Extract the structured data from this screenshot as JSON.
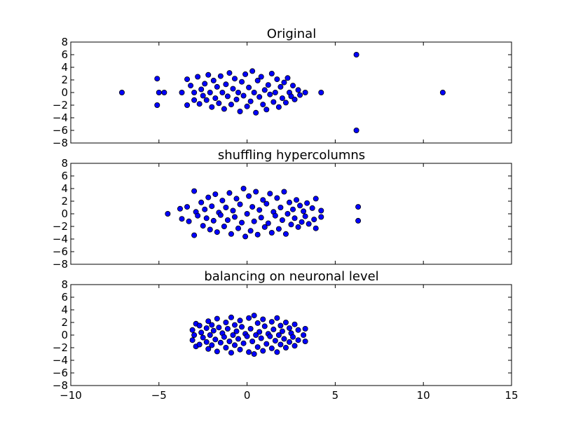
{
  "chart_data": {
    "type": "scatter",
    "marker_color": "#0000ff",
    "marker_edge_color": "#000000",
    "shared_x": true,
    "xlim": [
      -10,
      15
    ],
    "x_ticks": [
      -10,
      -5,
      0,
      5,
      10,
      15
    ],
    "x_tick_labels": [
      "−10",
      "−5",
      "0",
      "5",
      "10",
      "15"
    ],
    "subplots": [
      {
        "title": "Original",
        "ylim": [
          -8,
          8
        ],
        "y_ticks": [
          8,
          6,
          4,
          2,
          0,
          -2,
          -4,
          -6,
          -8
        ],
        "y_tick_labels": [
          "8",
          "6",
          "4",
          "2",
          "0",
          "−2",
          "−4",
          "−6",
          "−8"
        ],
        "points": [
          [
            -7.1,
            0.0
          ],
          [
            -5.1,
            2.2
          ],
          [
            -5.1,
            -2.0
          ],
          [
            -5.0,
            0.0
          ],
          [
            -4.7,
            0.0
          ],
          [
            -3.7,
            0.0
          ],
          [
            -3.4,
            2.1
          ],
          [
            -3.4,
            -2.0
          ],
          [
            -3.2,
            1.1
          ],
          [
            -3.0,
            0.0
          ],
          [
            -3.0,
            -1.2
          ],
          [
            -2.8,
            2.5
          ],
          [
            -2.7,
            -1.8
          ],
          [
            -2.6,
            0.5
          ],
          [
            -2.5,
            -0.5
          ],
          [
            -2.4,
            1.4
          ],
          [
            -2.3,
            -1.2
          ],
          [
            -2.2,
            2.8
          ],
          [
            -2.1,
            0.0
          ],
          [
            -2.0,
            -2.3
          ],
          [
            -1.9,
            1.9
          ],
          [
            -1.8,
            -0.9
          ],
          [
            -1.7,
            0.9
          ],
          [
            -1.6,
            -1.7
          ],
          [
            -1.5,
            2.6
          ],
          [
            -1.4,
            0.0
          ],
          [
            -1.3,
            -2.6
          ],
          [
            -1.2,
            1.3
          ],
          [
            -1.1,
            -0.6
          ],
          [
            -1.0,
            3.1
          ],
          [
            -0.9,
            -1.9
          ],
          [
            -0.8,
            0.6
          ],
          [
            -0.7,
            2.2
          ],
          [
            -0.6,
            -1.1
          ],
          [
            -0.5,
            0.0
          ],
          [
            -0.4,
            -3.0
          ],
          [
            -0.3,
            1.7
          ],
          [
            -0.2,
            -0.5
          ],
          [
            -0.1,
            2.9
          ],
          [
            0.0,
            -2.2
          ],
          [
            0.1,
            0.8
          ],
          [
            0.2,
            -1.4
          ],
          [
            0.3,
            3.4
          ],
          [
            0.4,
            0.0
          ],
          [
            0.5,
            -3.2
          ],
          [
            0.6,
            1.9
          ],
          [
            0.7,
            -0.7
          ],
          [
            0.8,
            2.5
          ],
          [
            0.9,
            -1.9
          ],
          [
            1.0,
            0.4
          ],
          [
            1.1,
            -2.7
          ],
          [
            1.2,
            1.2
          ],
          [
            1.3,
            -0.3
          ],
          [
            1.4,
            3.0
          ],
          [
            1.5,
            -1.5
          ],
          [
            1.6,
            0.0
          ],
          [
            1.7,
            2.1
          ],
          [
            1.8,
            -2.3
          ],
          [
            1.9,
            0.9
          ],
          [
            2.0,
            -0.9
          ],
          [
            2.1,
            1.6
          ],
          [
            2.2,
            -1.6
          ],
          [
            2.3,
            2.3
          ],
          [
            2.4,
            0.0
          ],
          [
            2.5,
            -0.6
          ],
          [
            2.6,
            1.1
          ],
          [
            2.7,
            -1.1
          ],
          [
            2.9,
            0.4
          ],
          [
            3.0,
            -0.4
          ],
          [
            3.3,
            0.0
          ],
          [
            4.2,
            0.0
          ],
          [
            6.2,
            6.0
          ],
          [
            6.2,
            -6.0
          ],
          [
            11.1,
            0.0
          ]
        ]
      },
      {
        "title": "shuffling hypercolumns",
        "ylim": [
          -8,
          8
        ],
        "y_ticks": [
          8,
          6,
          4,
          2,
          0,
          -2,
          -4,
          -6,
          -8
        ],
        "y_tick_labels": [
          "8",
          "6",
          "4",
          "2",
          "0",
          "−2",
          "−4",
          "−6",
          "−8"
        ],
        "points": [
          [
            -4.5,
            0.0
          ],
          [
            -3.8,
            0.8
          ],
          [
            -3.7,
            -0.8
          ],
          [
            -3.4,
            1.1
          ],
          [
            -3.3,
            -1.2
          ],
          [
            -3.0,
            3.6
          ],
          [
            -3.0,
            -3.4
          ],
          [
            -2.9,
            0.3
          ],
          [
            -2.8,
            -0.3
          ],
          [
            -2.6,
            1.8
          ],
          [
            -2.5,
            -1.9
          ],
          [
            -2.4,
            0.7
          ],
          [
            -2.3,
            -0.7
          ],
          [
            -2.2,
            2.6
          ],
          [
            -2.1,
            -2.5
          ],
          [
            -2.0,
            1.2
          ],
          [
            -1.9,
            -1.1
          ],
          [
            -1.8,
            3.1
          ],
          [
            -1.7,
            -2.9
          ],
          [
            -1.6,
            0.2
          ],
          [
            -1.5,
            -0.2
          ],
          [
            -1.4,
            2.1
          ],
          [
            -1.3,
            -2.0
          ],
          [
            -1.2,
            1.0
          ],
          [
            -1.1,
            -1.0
          ],
          [
            -1.0,
            3.3
          ],
          [
            -0.9,
            -3.2
          ],
          [
            -0.8,
            0.5
          ],
          [
            -0.7,
            -0.5
          ],
          [
            -0.6,
            2.4
          ],
          [
            -0.5,
            -2.3
          ],
          [
            -0.4,
            1.5
          ],
          [
            -0.3,
            -1.4
          ],
          [
            -0.2,
            4.0
          ],
          [
            -0.1,
            -3.6
          ],
          [
            0.0,
            0.0
          ],
          [
            0.1,
            2.8
          ],
          [
            0.2,
            -2.7
          ],
          [
            0.3,
            1.1
          ],
          [
            0.4,
            -1.2
          ],
          [
            0.5,
            3.5
          ],
          [
            0.6,
            -3.3
          ],
          [
            0.7,
            0.6
          ],
          [
            0.8,
            -0.6
          ],
          [
            0.9,
            2.2
          ],
          [
            1.0,
            -2.1
          ],
          [
            1.1,
            1.6
          ],
          [
            1.2,
            -1.5
          ],
          [
            1.3,
            3.2
          ],
          [
            1.4,
            -3.0
          ],
          [
            1.5,
            0.3
          ],
          [
            1.6,
            -0.3
          ],
          [
            1.7,
            2.5
          ],
          [
            1.8,
            -2.4
          ],
          [
            1.9,
            1.0
          ],
          [
            2.0,
            -1.0
          ],
          [
            2.1,
            3.5
          ],
          [
            2.2,
            -3.2
          ],
          [
            2.3,
            0.0
          ],
          [
            2.4,
            1.8
          ],
          [
            2.5,
            -1.7
          ],
          [
            2.6,
            0.7
          ],
          [
            2.7,
            -0.7
          ],
          [
            2.8,
            2.2
          ],
          [
            2.9,
            -2.1
          ],
          [
            3.0,
            1.3
          ],
          [
            3.1,
            -1.3
          ],
          [
            3.2,
            0.4
          ],
          [
            3.3,
            -0.4
          ],
          [
            3.4,
            1.7
          ],
          [
            3.5,
            -1.6
          ],
          [
            3.7,
            0.9
          ],
          [
            3.8,
            -0.9
          ],
          [
            3.9,
            2.4
          ],
          [
            3.9,
            -2.3
          ],
          [
            4.2,
            0.5
          ],
          [
            4.2,
            -0.5
          ],
          [
            6.3,
            1.1
          ],
          [
            6.3,
            -1.1
          ]
        ]
      },
      {
        "title": "balancing on neuronal level",
        "ylim": [
          -8,
          8
        ],
        "y_ticks": [
          8,
          6,
          4,
          2,
          0,
          -2,
          -4,
          -6,
          -8
        ],
        "y_tick_labels": [
          "8",
          "6",
          "4",
          "2",
          "0",
          "−2",
          "−4",
          "−6",
          "−8"
        ],
        "points": [
          [
            -3.1,
            0.8
          ],
          [
            -3.1,
            -0.8
          ],
          [
            -3.0,
            0.0
          ],
          [
            -2.9,
            1.8
          ],
          [
            -2.9,
            -1.8
          ],
          [
            -2.7,
            1.5
          ],
          [
            -2.7,
            -1.5
          ],
          [
            -2.6,
            0.4
          ],
          [
            -2.5,
            -0.4
          ],
          [
            -2.3,
            1.1
          ],
          [
            -2.3,
            -1.1
          ],
          [
            -2.2,
            2.2
          ],
          [
            -2.2,
            -2.2
          ],
          [
            -2.1,
            0.0
          ],
          [
            -2.0,
            1.6
          ],
          [
            -2.0,
            -1.6
          ],
          [
            -1.9,
            0.7
          ],
          [
            -1.8,
            -0.7
          ],
          [
            -1.7,
            2.6
          ],
          [
            -1.7,
            -2.6
          ],
          [
            -1.6,
            1.2
          ],
          [
            -1.5,
            -1.2
          ],
          [
            -1.4,
            0.3
          ],
          [
            -1.3,
            -0.3
          ],
          [
            -1.2,
            2.0
          ],
          [
            -1.2,
            -2.0
          ],
          [
            -1.1,
            1.0
          ],
          [
            -1.0,
            -1.0
          ],
          [
            -0.9,
            2.8
          ],
          [
            -0.9,
            -2.8
          ],
          [
            -0.8,
            0.0
          ],
          [
            -0.7,
            1.6
          ],
          [
            -0.7,
            -1.6
          ],
          [
            -0.6,
            0.6
          ],
          [
            -0.5,
            -0.6
          ],
          [
            -0.4,
            2.3
          ],
          [
            -0.4,
            -2.3
          ],
          [
            -0.3,
            1.3
          ],
          [
            -0.2,
            -1.3
          ],
          [
            -0.1,
            0.2
          ],
          [
            0.0,
            -0.2
          ],
          [
            0.1,
            2.7
          ],
          [
            0.1,
            -2.7
          ],
          [
            0.2,
            1.0
          ],
          [
            0.3,
            -1.0
          ],
          [
            0.4,
            3.1
          ],
          [
            0.4,
            -3.0
          ],
          [
            0.5,
            0.0
          ],
          [
            0.6,
            1.9
          ],
          [
            0.6,
            -1.9
          ],
          [
            0.7,
            0.5
          ],
          [
            0.8,
            -0.5
          ],
          [
            0.9,
            2.5
          ],
          [
            0.9,
            -2.5
          ],
          [
            1.0,
            1.4
          ],
          [
            1.1,
            -1.4
          ],
          [
            1.2,
            0.2
          ],
          [
            1.3,
            -0.2
          ],
          [
            1.4,
            2.1
          ],
          [
            1.4,
            -2.1
          ],
          [
            1.5,
            0.9
          ],
          [
            1.6,
            -0.9
          ],
          [
            1.7,
            2.7
          ],
          [
            1.7,
            -2.7
          ],
          [
            1.8,
            0.0
          ],
          [
            1.9,
            1.5
          ],
          [
            1.9,
            -1.5
          ],
          [
            2.0,
            0.6
          ],
          [
            2.1,
            -0.6
          ],
          [
            2.2,
            2.0
          ],
          [
            2.2,
            -2.0
          ],
          [
            2.4,
            1.1
          ],
          [
            2.4,
            -1.1
          ],
          [
            2.5,
            0.3
          ],
          [
            2.6,
            -0.3
          ],
          [
            2.7,
            1.7
          ],
          [
            2.7,
            -1.7
          ],
          [
            2.9,
            0.8
          ],
          [
            2.9,
            -0.8
          ],
          [
            3.2,
            0.0
          ],
          [
            3.3,
            1.0
          ],
          [
            3.3,
            -1.0
          ]
        ]
      }
    ]
  }
}
